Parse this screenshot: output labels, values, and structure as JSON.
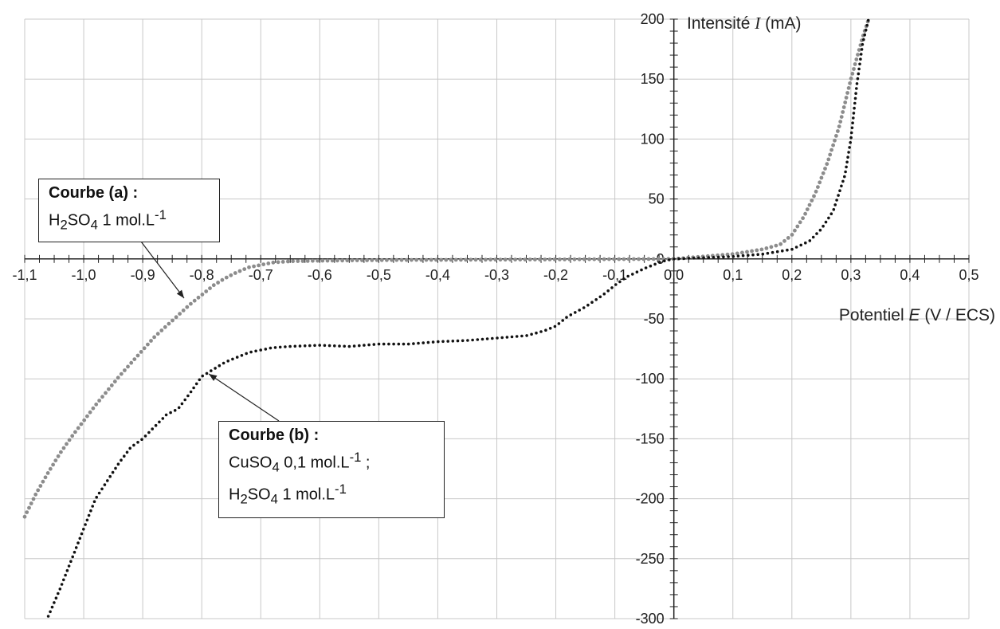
{
  "chart_data": {
    "type": "scatter",
    "xlabel_prefix": "Potentiel ",
    "xlabel_var": "E",
    "xlabel_suffix": " (V / ECS)",
    "ylabel_prefix": "Intensité ",
    "ylabel_var": "I",
    "ylabel_suffix": " (mA)",
    "xlim": [
      -1.1,
      0.5
    ],
    "ylim": [
      -300,
      200
    ],
    "x_ticks": [
      -1.1,
      -1.0,
      -0.9,
      -0.8,
      -0.7,
      -0.6,
      -0.5,
      -0.4,
      -0.3,
      -0.2,
      -0.1,
      0.0,
      0.1,
      0.2,
      0.3,
      0.4,
      0.5
    ],
    "x_tick_labels": [
      "-1,1",
      "-1,0",
      "-0,9",
      "-0,8",
      "-0,7",
      "-0,6",
      "-0,5",
      "-0,4",
      "-0,3",
      "-0,2",
      "-0,1",
      "0,0",
      "0,1",
      "0,2",
      "0,3",
      "0,4",
      "0,5"
    ],
    "y_ticks": [
      200,
      150,
      100,
      50,
      0,
      -50,
      -100,
      -150,
      -200,
      -250,
      -300
    ],
    "y_tick_labels": [
      "200",
      "150",
      "100",
      "50",
      "0",
      "-50",
      "-100",
      "-150",
      "-200",
      "-250",
      "-300"
    ],
    "grid": true,
    "series": [
      {
        "name": "Courbe (a)",
        "color": "#8c8c8c",
        "points": [
          [
            -1.1,
            -215
          ],
          [
            -1.08,
            -195
          ],
          [
            -1.06,
            -178
          ],
          [
            -1.04,
            -162
          ],
          [
            -1.02,
            -148
          ],
          [
            -1.0,
            -135
          ],
          [
            -0.98,
            -122
          ],
          [
            -0.96,
            -110
          ],
          [
            -0.94,
            -98
          ],
          [
            -0.92,
            -87
          ],
          [
            -0.9,
            -76
          ],
          [
            -0.88,
            -65
          ],
          [
            -0.86,
            -56
          ],
          [
            -0.84,
            -47
          ],
          [
            -0.82,
            -38
          ],
          [
            -0.8,
            -30
          ],
          [
            -0.78,
            -22
          ],
          [
            -0.76,
            -16
          ],
          [
            -0.74,
            -11
          ],
          [
            -0.72,
            -7
          ],
          [
            -0.7,
            -5
          ],
          [
            -0.68,
            -3
          ],
          [
            -0.65,
            -2
          ],
          [
            -0.6,
            -1.5
          ],
          [
            -0.5,
            -1
          ],
          [
            -0.4,
            -0.8
          ],
          [
            -0.3,
            -0.6
          ],
          [
            -0.2,
            -0.4
          ],
          [
            -0.1,
            -0.2
          ],
          [
            0.0,
            0
          ],
          [
            0.05,
            2
          ],
          [
            0.1,
            4
          ],
          [
            0.15,
            8
          ],
          [
            0.18,
            12
          ],
          [
            0.2,
            20
          ],
          [
            0.22,
            35
          ],
          [
            0.24,
            55
          ],
          [
            0.26,
            80
          ],
          [
            0.28,
            110
          ],
          [
            0.3,
            150
          ],
          [
            0.32,
            185
          ],
          [
            0.33,
            200
          ]
        ]
      },
      {
        "name": "Courbe (b)",
        "color": "#111111",
        "points": [
          [
            -1.06,
            -298
          ],
          [
            -1.04,
            -275
          ],
          [
            -1.02,
            -250
          ],
          [
            -1.0,
            -225
          ],
          [
            -0.98,
            -200
          ],
          [
            -0.96,
            -185
          ],
          [
            -0.94,
            -170
          ],
          [
            -0.92,
            -157
          ],
          [
            -0.9,
            -150
          ],
          [
            -0.88,
            -140
          ],
          [
            -0.86,
            -130
          ],
          [
            -0.84,
            -125
          ],
          [
            -0.82,
            -112
          ],
          [
            -0.8,
            -98
          ],
          [
            -0.78,
            -92
          ],
          [
            -0.76,
            -86
          ],
          [
            -0.74,
            -82
          ],
          [
            -0.72,
            -78
          ],
          [
            -0.7,
            -76
          ],
          [
            -0.68,
            -74
          ],
          [
            -0.65,
            -73
          ],
          [
            -0.6,
            -72
          ],
          [
            -0.55,
            -73
          ],
          [
            -0.5,
            -71
          ],
          [
            -0.45,
            -71
          ],
          [
            -0.4,
            -69
          ],
          [
            -0.35,
            -68
          ],
          [
            -0.3,
            -66
          ],
          [
            -0.25,
            -64
          ],
          [
            -0.22,
            -60
          ],
          [
            -0.2,
            -56
          ],
          [
            -0.18,
            -48
          ],
          [
            -0.15,
            -40
          ],
          [
            -0.12,
            -30
          ],
          [
            -0.1,
            -22
          ],
          [
            -0.08,
            -15
          ],
          [
            -0.05,
            -8
          ],
          [
            -0.02,
            -2
          ],
          [
            0.0,
            0
          ],
          [
            0.05,
            1
          ],
          [
            0.1,
            2
          ],
          [
            0.15,
            4
          ],
          [
            0.2,
            8
          ],
          [
            0.23,
            15
          ],
          [
            0.25,
            25
          ],
          [
            0.27,
            40
          ],
          [
            0.29,
            70
          ],
          [
            0.3,
            100
          ],
          [
            0.31,
            145
          ],
          [
            0.32,
            180
          ],
          [
            0.33,
            200
          ]
        ]
      }
    ],
    "annotations": [
      {
        "title": "Courbe (a)",
        "lines": [
          "H2SO4 1 mol.L-1"
        ]
      },
      {
        "title": "Courbe (b)",
        "lines": [
          "CuSO4 0,1 mol.L-1 ;",
          "H2SO4 1 mol.L-1"
        ]
      }
    ]
  },
  "callouts": {
    "a": {
      "title": "Courbe (a)",
      "title_suffix": " :",
      "line1_pre": "H",
      "line1_sub1": "2",
      "line1_mid": "SO",
      "line1_sub2": "4",
      "line1_post": " 1 mol.L",
      "line1_sup": "-1"
    },
    "b": {
      "title": "Courbe (b)",
      "title_suffix": " :",
      "line1_pre": "CuSO",
      "line1_sub1": "4",
      "line1_post": " 0,1 mol.L",
      "line1_sup": "-1",
      "line1_end": " ;",
      "line2_pre": "H",
      "line2_sub1": "2",
      "line2_mid": "SO",
      "line2_sub2": "4",
      "line2_post": " 1 mol.L",
      "line2_sup": "-1"
    }
  }
}
